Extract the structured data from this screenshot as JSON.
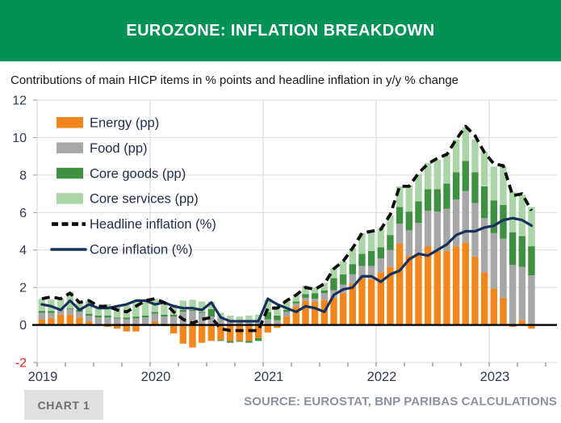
{
  "header": {
    "title": "EUROZONE: INFLATION BREAKDOWN"
  },
  "subtitle": "Contributions of main HICP items in % points and headline inflation in y/y % change",
  "footer": {
    "chart_label": "CHART 1",
    "source": "SOURCE: EUROSTAT, BNP PARIBAS CALCULATIONS"
  },
  "colors": {
    "banner_green": "#009155",
    "energy_orange": "#F0861C",
    "food_gray": "#A7A7A7",
    "core_goods_green": "#3F9142",
    "core_services_light_green": "#ACD5A7",
    "headline_black": "#0d0d0d",
    "core_navy": "#16325C",
    "grid": "#d9d9d9",
    "axis_label": "#2e3b4e",
    "negative_tick_red": "#E5231B",
    "legend_text": "#1f2d4b"
  },
  "chart_data": {
    "type": "bar",
    "subtype": "stacked-bars-with-lines",
    "title": "EUROZONE: INFLATION BREAKDOWN",
    "xlabel": "",
    "ylabel": "",
    "x_start": "2019-01",
    "x_end": "2023-05",
    "x_frequency": "monthly",
    "x_tick_labels": [
      "2019",
      "2020",
      "2021",
      "2022",
      "2023"
    ],
    "ylim": [
      -2,
      12
    ],
    "ytick_step": 2,
    "grid": true,
    "legend_position": "top-left",
    "series": [
      {
        "name": "Energy (pp)",
        "color": "#F0861C",
        "values": [
          0.3,
          0.35,
          0.55,
          0.55,
          0.4,
          0.2,
          0.05,
          -0.1,
          -0.2,
          -0.35,
          -0.35,
          0.0,
          0.2,
          -0.05,
          -0.45,
          -1.0,
          -1.2,
          -0.95,
          -0.85,
          -0.8,
          -0.85,
          -0.85,
          -0.85,
          -0.7,
          -0.4,
          -0.15,
          0.45,
          1.0,
          1.3,
          1.25,
          1.35,
          1.45,
          1.7,
          2.2,
          2.55,
          2.45,
          2.8,
          3.1,
          4.35,
          3.7,
          3.85,
          4.2,
          3.95,
          3.95,
          4.2,
          4.4,
          3.65,
          2.8,
          1.95,
          1.45,
          -0.1,
          0.25,
          -0.2
        ]
      },
      {
        "name": "Food (pp)",
        "color": "#A7A7A7",
        "values": [
          0.35,
          0.3,
          0.3,
          0.3,
          0.3,
          0.3,
          0.35,
          0.4,
          0.35,
          0.3,
          0.35,
          0.4,
          0.4,
          0.45,
          0.45,
          0.7,
          0.75,
          0.65,
          0.45,
          0.35,
          0.3,
          0.25,
          0.25,
          0.25,
          0.3,
          0.25,
          0.25,
          0.15,
          0.15,
          0.15,
          0.35,
          0.4,
          0.45,
          0.5,
          0.6,
          0.7,
          0.75,
          0.9,
          1.05,
          1.35,
          1.6,
          1.9,
          2.1,
          2.25,
          2.5,
          2.75,
          2.85,
          2.9,
          2.95,
          3.15,
          3.2,
          2.85,
          2.65
        ]
      },
      {
        "name": "Core goods (pp)",
        "color": "#3F9142",
        "values": [
          0.1,
          0.1,
          0.05,
          0.05,
          0.1,
          0.1,
          0.1,
          0.1,
          0.05,
          0.1,
          0.1,
          0.1,
          0.1,
          0.1,
          0.1,
          0.1,
          0.05,
          0.05,
          0.4,
          -0.05,
          -0.1,
          -0.05,
          -0.1,
          -0.15,
          0.4,
          0.25,
          0.1,
          0.1,
          0.2,
          0.3,
          0.15,
          0.65,
          0.55,
          0.55,
          0.65,
          0.8,
          0.6,
          0.8,
          0.9,
          1.0,
          1.15,
          1.15,
          1.2,
          1.35,
          1.45,
          1.6,
          1.65,
          1.7,
          1.75,
          1.8,
          1.75,
          1.65,
          1.55
        ]
      },
      {
        "name": "Core services (pp)",
        "color": "#ACD5A7",
        "values": [
          0.65,
          0.6,
          0.5,
          0.85,
          0.45,
          0.7,
          0.5,
          0.6,
          0.65,
          0.65,
          0.85,
          0.8,
          0.7,
          0.7,
          0.55,
          0.5,
          0.55,
          0.55,
          0.4,
          0.3,
          0.2,
          0.2,
          0.25,
          0.3,
          0.65,
          0.5,
          0.55,
          0.35,
          0.45,
          0.3,
          0.4,
          0.5,
          0.7,
          0.85,
          1.1,
          1.0,
          1.0,
          1.05,
          1.1,
          1.4,
          1.45,
          1.4,
          1.55,
          1.6,
          1.75,
          1.8,
          1.75,
          1.85,
          1.8,
          2.05,
          2.15,
          2.2,
          2.1
        ]
      }
    ],
    "lines": [
      {
        "name": "Headline inflation (%)",
        "style": "dashed",
        "color": "#0d0d0d",
        "values": [
          1.4,
          1.5,
          1.4,
          1.7,
          1.2,
          1.3,
          1.0,
          1.0,
          0.8,
          0.7,
          1.0,
          1.3,
          1.4,
          1.2,
          0.7,
          0.3,
          0.1,
          0.3,
          0.4,
          -0.2,
          -0.3,
          -0.3,
          -0.3,
          -0.3,
          0.9,
          0.9,
          1.3,
          1.6,
          2.0,
          1.9,
          2.2,
          3.0,
          3.4,
          4.1,
          4.9,
          5.0,
          5.1,
          5.9,
          7.4,
          7.4,
          8.1,
          8.6,
          8.9,
          9.1,
          9.9,
          10.6,
          10.1,
          9.2,
          8.6,
          8.5,
          6.9,
          7.0,
          6.1
        ]
      },
      {
        "name": "Core inflation (%)",
        "style": "solid",
        "color": "#16325C",
        "values": [
          1.1,
          1.0,
          0.8,
          1.3,
          0.8,
          1.1,
          0.9,
          0.9,
          1.0,
          1.1,
          1.3,
          1.3,
          1.1,
          1.2,
          1.0,
          0.9,
          0.9,
          0.8,
          1.2,
          0.4,
          0.2,
          0.2,
          0.2,
          0.2,
          1.4,
          1.1,
          0.9,
          0.7,
          1.0,
          0.9,
          0.7,
          1.6,
          1.9,
          2.0,
          2.6,
          2.6,
          2.3,
          2.7,
          2.9,
          3.5,
          3.8,
          3.7,
          4.0,
          4.3,
          4.8,
          5.0,
          5.0,
          5.2,
          5.3,
          5.6,
          5.7,
          5.6,
          5.3
        ]
      }
    ]
  }
}
